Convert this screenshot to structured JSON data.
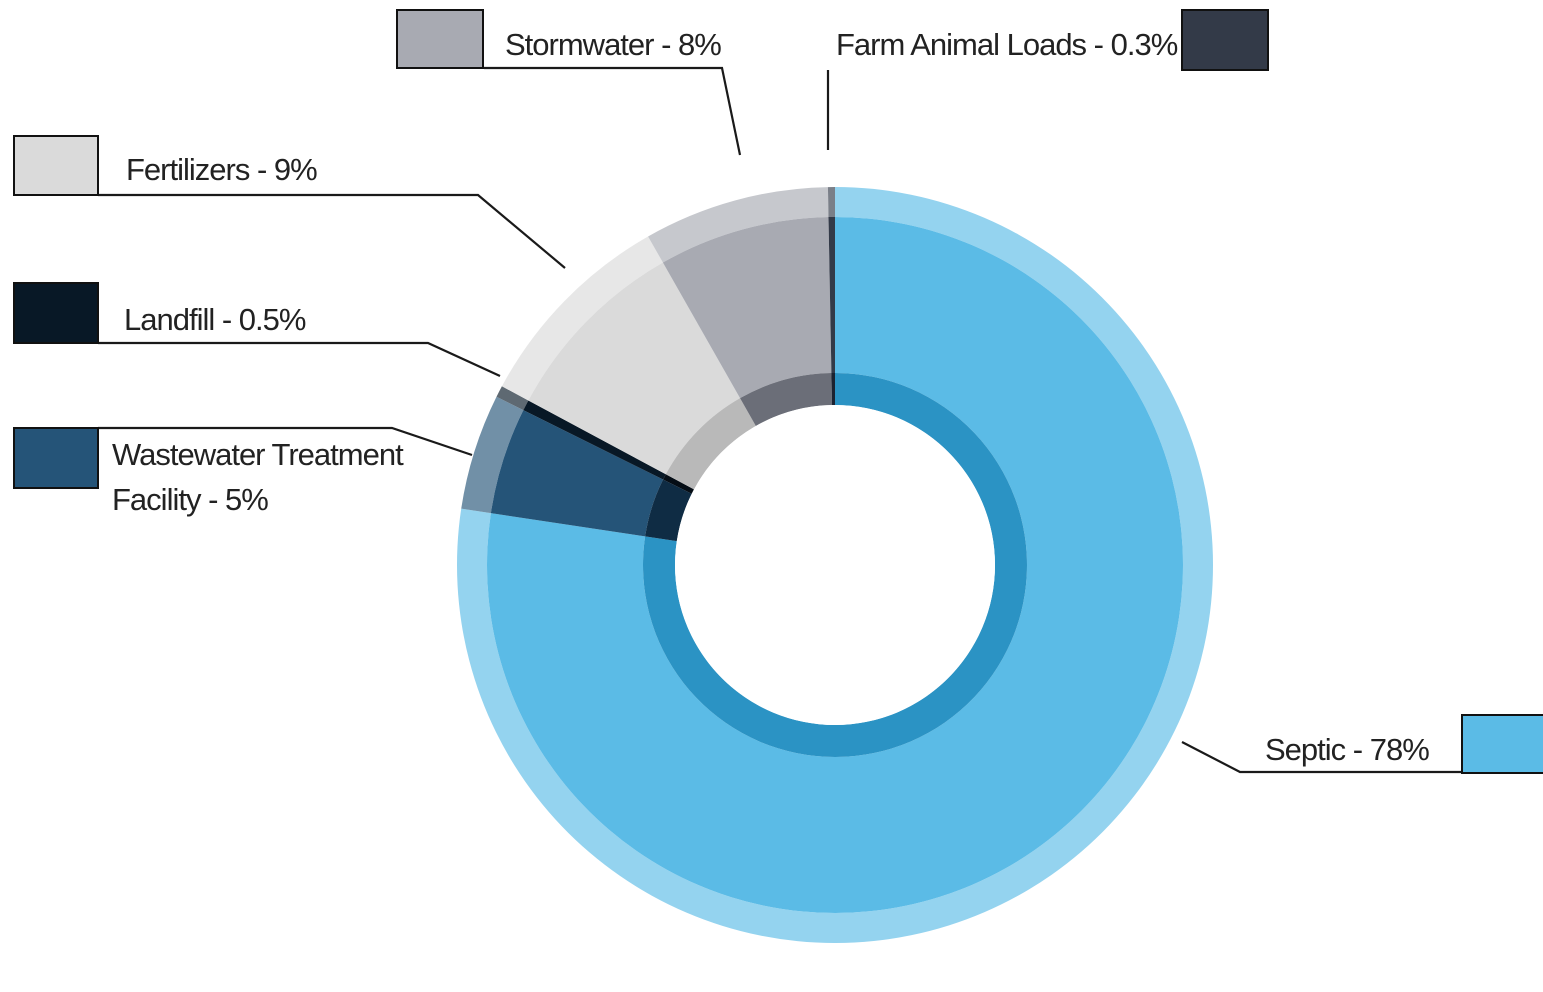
{
  "chart_data": {
    "type": "pie",
    "variant": "donut",
    "title": "",
    "legend": "callout-labels",
    "slices": [
      {
        "name": "Septic",
        "label": "Septic - 78%",
        "value": 78,
        "color": "#5bbbe6",
        "color_inner": "#2b93c4"
      },
      {
        "name": "Wastewater Treatment Facility",
        "label_lines": [
          "Wastewater Treatment",
          "Facility - 5%"
        ],
        "value": 5,
        "color": "#255478",
        "color_inner": "#0f2c44"
      },
      {
        "name": "Landfill",
        "label": "Landfill - 0.5%",
        "value": 0.5,
        "color": "#081826",
        "color_inner": "#050d15"
      },
      {
        "name": "Fertilizers",
        "label": "Fertilizers - 9%",
        "value": 9,
        "color": "#dadada",
        "color_inner": "#b9b9b9"
      },
      {
        "name": "Stormwater",
        "label": "Stormwater - 8%",
        "value": 8,
        "color": "#a8aab2",
        "color_inner": "#6b6e78"
      },
      {
        "name": "Farm Animal Loads",
        "label": "Farm Animal Loads - 0.3%",
        "value": 0.3,
        "color": "#333a48",
        "color_inner": "#1c2230"
      }
    ]
  }
}
